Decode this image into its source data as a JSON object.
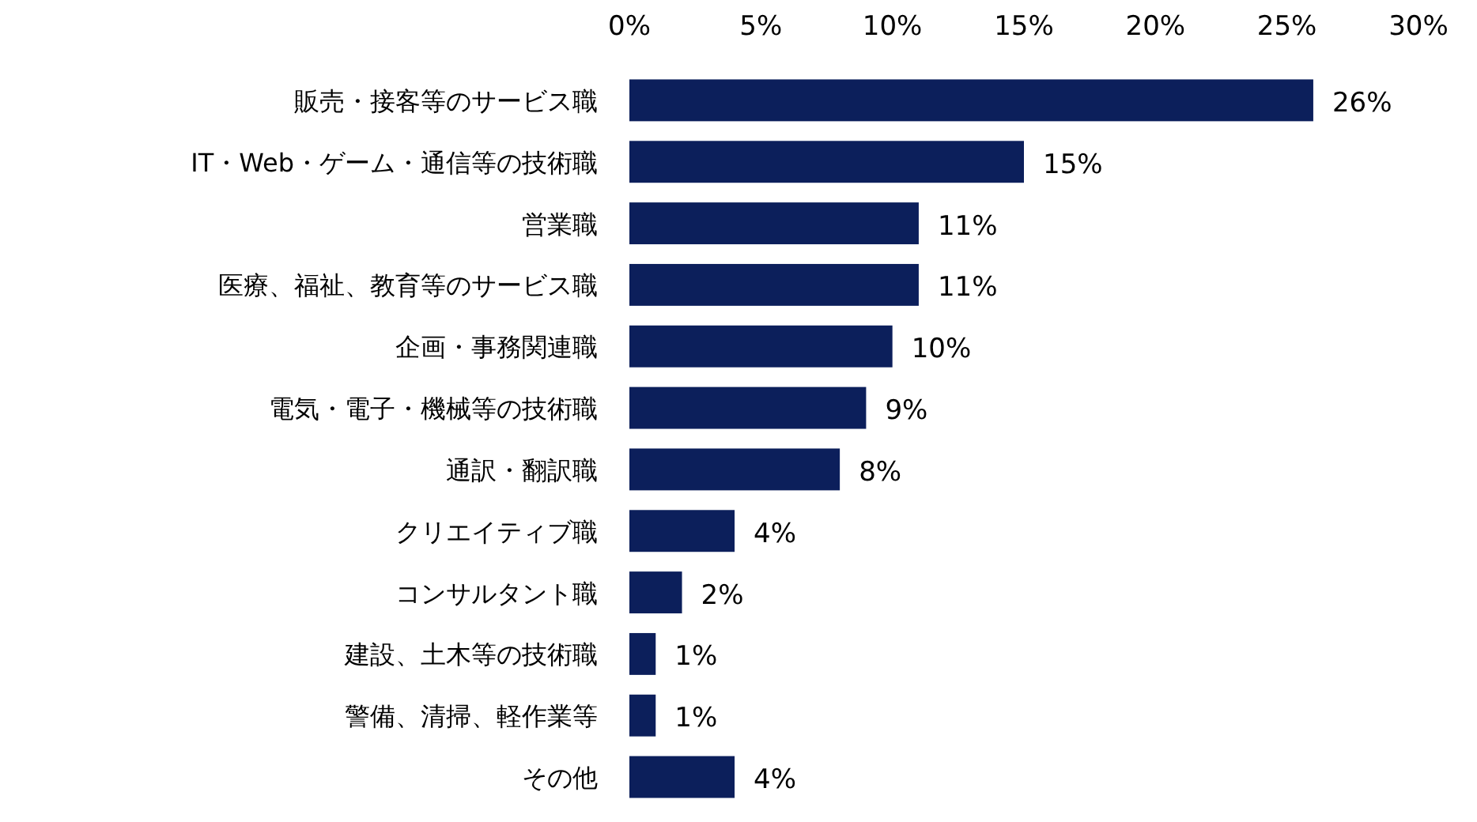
{
  "chart_data": {
    "type": "bar",
    "orientation": "horizontal",
    "categories": [
      "販売・接客等のサービス職",
      "IT・Web・ゲーム・通信等の技術職",
      "営業職",
      "医療、福祉、教育等のサービス職",
      "企画・事務関連職",
      "電気・電子・機械等の技術職",
      "通訳・翻訳職",
      "クリエイティブ職",
      "コンサルタント職",
      "建設、土木等の技術職",
      "警備、清掃、軽作業等",
      "その他"
    ],
    "values": [
      26,
      15,
      11,
      11,
      10,
      9,
      8,
      4,
      2,
      1,
      1,
      4
    ],
    "value_labels": [
      "26%",
      "15%",
      "11%",
      "11%",
      "10%",
      "9%",
      "8%",
      "4%",
      "2%",
      "1%",
      "1%",
      "4%"
    ],
    "color": "#0c1f5b",
    "xlim": [
      0,
      30
    ],
    "xticks": [
      {
        "value": 0,
        "label": "0%"
      },
      {
        "value": 5,
        "label": "5%"
      },
      {
        "value": 10,
        "label": "10%"
      },
      {
        "value": 15,
        "label": "15%"
      },
      {
        "value": 20,
        "label": "20%"
      },
      {
        "value": 25,
        "label": "25%"
      },
      {
        "value": 30,
        "label": "30%"
      }
    ]
  }
}
